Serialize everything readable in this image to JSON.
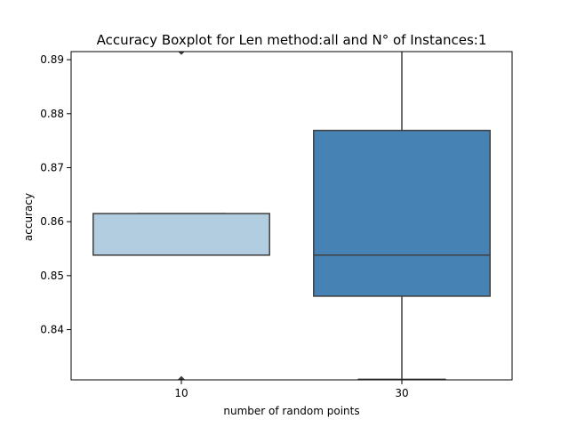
{
  "chart_data": {
    "type": "box",
    "title": "Accuracy Boxplot for Len method:all and N° of Instances:1",
    "xlabel": "number of random points",
    "ylabel": "accuracy",
    "ylim": [
      0.8307,
      0.8915
    ],
    "yticks": [
      0.84,
      0.85,
      0.86,
      0.87,
      0.88,
      0.89
    ],
    "ytick_labels": [
      "0.84",
      "0.85",
      "0.86",
      "0.87",
      "0.88",
      "0.89"
    ],
    "categories": [
      "10",
      "30"
    ],
    "boxes": [
      {
        "category": "10",
        "color": "#b3cde0",
        "q1": 0.8538,
        "median": 0.8538,
        "q3": 0.8615,
        "whisker_low": 0.8538,
        "whisker_high": 0.8615,
        "outliers": [
          0.8915,
          0.8308
        ]
      },
      {
        "category": "30",
        "color": "#4682b4",
        "q1": 0.8462,
        "median": 0.8538,
        "q3": 0.8769,
        "whisker_low": 0.8308,
        "whisker_high": 0.8923,
        "outliers": []
      }
    ],
    "grid": false,
    "legend": "none"
  }
}
